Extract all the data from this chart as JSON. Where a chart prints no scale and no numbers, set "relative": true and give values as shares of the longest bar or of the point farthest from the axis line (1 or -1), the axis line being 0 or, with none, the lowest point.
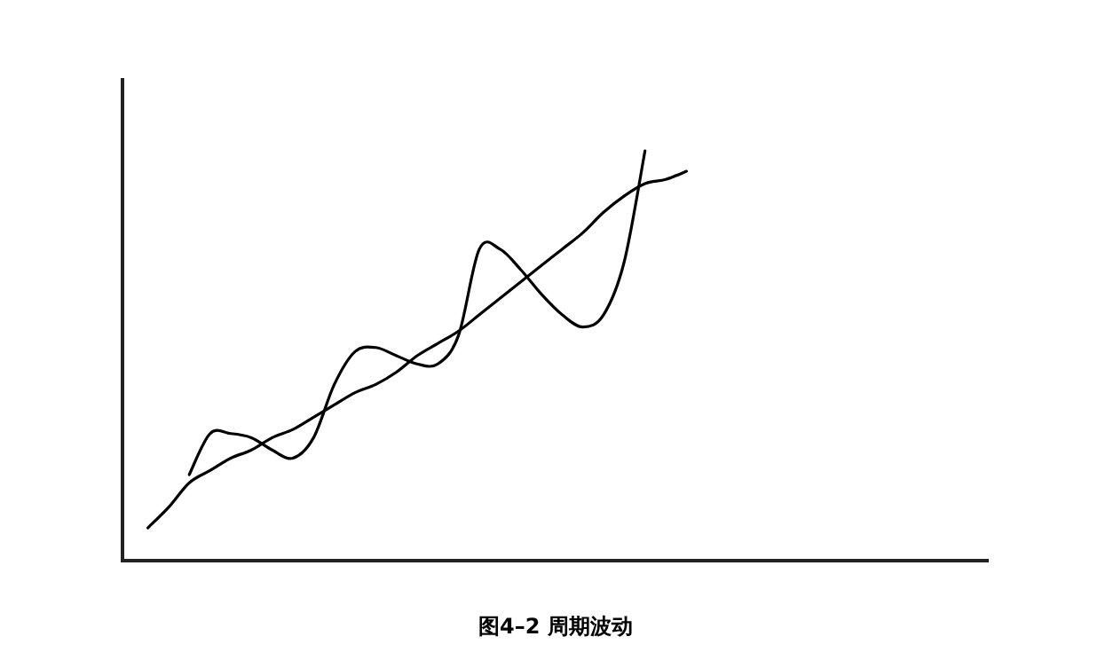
{
  "chart_data": {
    "type": "line",
    "title": "图4–2 周期波动",
    "relative": true,
    "categories": [
      null,
      null,
      null,
      null,
      null,
      null,
      null,
      null,
      null,
      null,
      null,
      null,
      null,
      null,
      null,
      null,
      null,
      null,
      null,
      null,
      null,
      null,
      null,
      null,
      null,
      null,
      null
    ],
    "series": [
      {
        "color": "#000000",
        "values": [
          0.08,
          0.13,
          0.19,
          0.22,
          0.25,
          0.27,
          0.3,
          0.32,
          0.35,
          0.38,
          0.41,
          0.43,
          0.46,
          0.5,
          0.53,
          0.56,
          0.6,
          0.64,
          0.68,
          0.72,
          0.76,
          0.8,
          0.85,
          0.89,
          0.92,
          0.93,
          0.95
        ]
      },
      {
        "color": "#000000",
        "values": [
          null,
          null,
          0.21,
          0.31,
          0.31,
          0.3,
          0.27,
          0.25,
          0.3,
          0.43,
          0.51,
          0.52,
          0.5,
          0.48,
          0.48,
          0.55,
          0.76,
          0.76,
          0.71,
          0.65,
          0.6,
          0.57,
          0.6,
          0.73,
          1,
          null,
          null
        ]
      }
    ],
    "grid": false,
    "marker": "none",
    "line_style": "solid"
  }
}
